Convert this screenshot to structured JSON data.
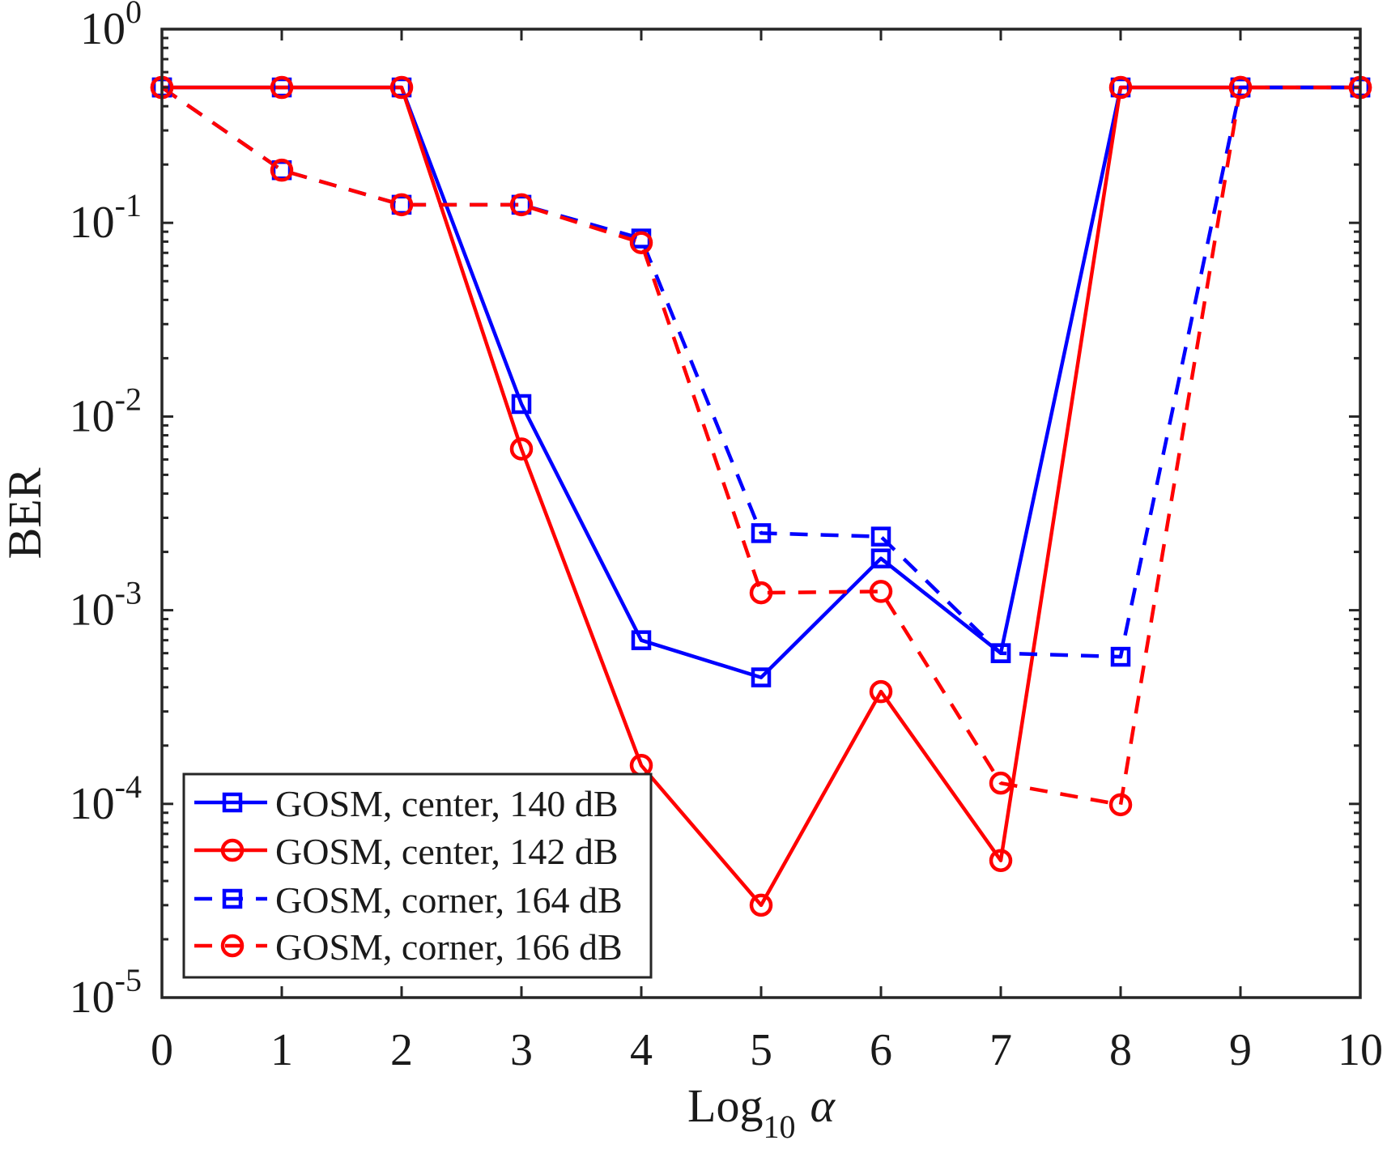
{
  "chart_data": {
    "type": "line",
    "title": "",
    "xlabel": "Log",
    "xlabel_subscript": "10",
    "xlabel_symbol": "α",
    "ylabel": "BER",
    "xlim": [
      0,
      10
    ],
    "ylim": [
      1e-05,
      1
    ],
    "yscale": "log",
    "grid": false,
    "x_ticks": [
      0,
      1,
      2,
      3,
      4,
      5,
      6,
      7,
      8,
      9,
      10
    ],
    "x_tick_labels": [
      "0",
      "1",
      "2",
      "3",
      "4",
      "5",
      "6",
      "7",
      "8",
      "9",
      "10"
    ],
    "y_ticks": [
      1,
      0.1,
      0.01,
      0.001,
      0.0001,
      1e-05
    ],
    "y_tick_labels": [
      {
        "base": "10",
        "exp": "0"
      },
      {
        "base": "10",
        "exp": "-1"
      },
      {
        "base": "10",
        "exp": "-2"
      },
      {
        "base": "10",
        "exp": "-3"
      },
      {
        "base": "10",
        "exp": "-4"
      },
      {
        "base": "10",
        "exp": "-5"
      }
    ],
    "legend_position": "bottom-left",
    "x": [
      0,
      1,
      2,
      3,
      4,
      5,
      6,
      7,
      8,
      9,
      10
    ],
    "series": [
      {
        "name": "GOSM, center, 140 dB",
        "color": "#0000FF",
        "line": "solid",
        "marker": "square",
        "values": [
          0.5,
          0.5,
          0.5,
          0.0116,
          0.0007,
          0.00045,
          0.00185,
          0.0006,
          0.5,
          0.5,
          0.5
        ]
      },
      {
        "name": "GOSM, center, 142 dB",
        "color": "#FF0000",
        "line": "solid",
        "marker": "circle",
        "values": [
          0.5,
          0.5,
          0.5,
          0.0068,
          0.000158,
          3e-05,
          0.00038,
          5.1e-05,
          0.5,
          0.5,
          0.5
        ]
      },
      {
        "name": "GOSM, corner, 164 dB",
        "color": "#0000FF",
        "line": "dashed",
        "marker": "square",
        "values": [
          0.5,
          0.187,
          0.124,
          0.124,
          0.083,
          0.0025,
          0.0024,
          0.0006,
          0.000575,
          0.5,
          0.5
        ]
      },
      {
        "name": "GOSM, corner, 166 dB",
        "color": "#FF0000",
        "line": "dashed",
        "marker": "circle",
        "values": [
          0.5,
          0.187,
          0.124,
          0.124,
          0.079,
          0.00123,
          0.00125,
          0.000128,
          9.9e-05,
          0.5,
          0.5
        ]
      }
    ]
  }
}
